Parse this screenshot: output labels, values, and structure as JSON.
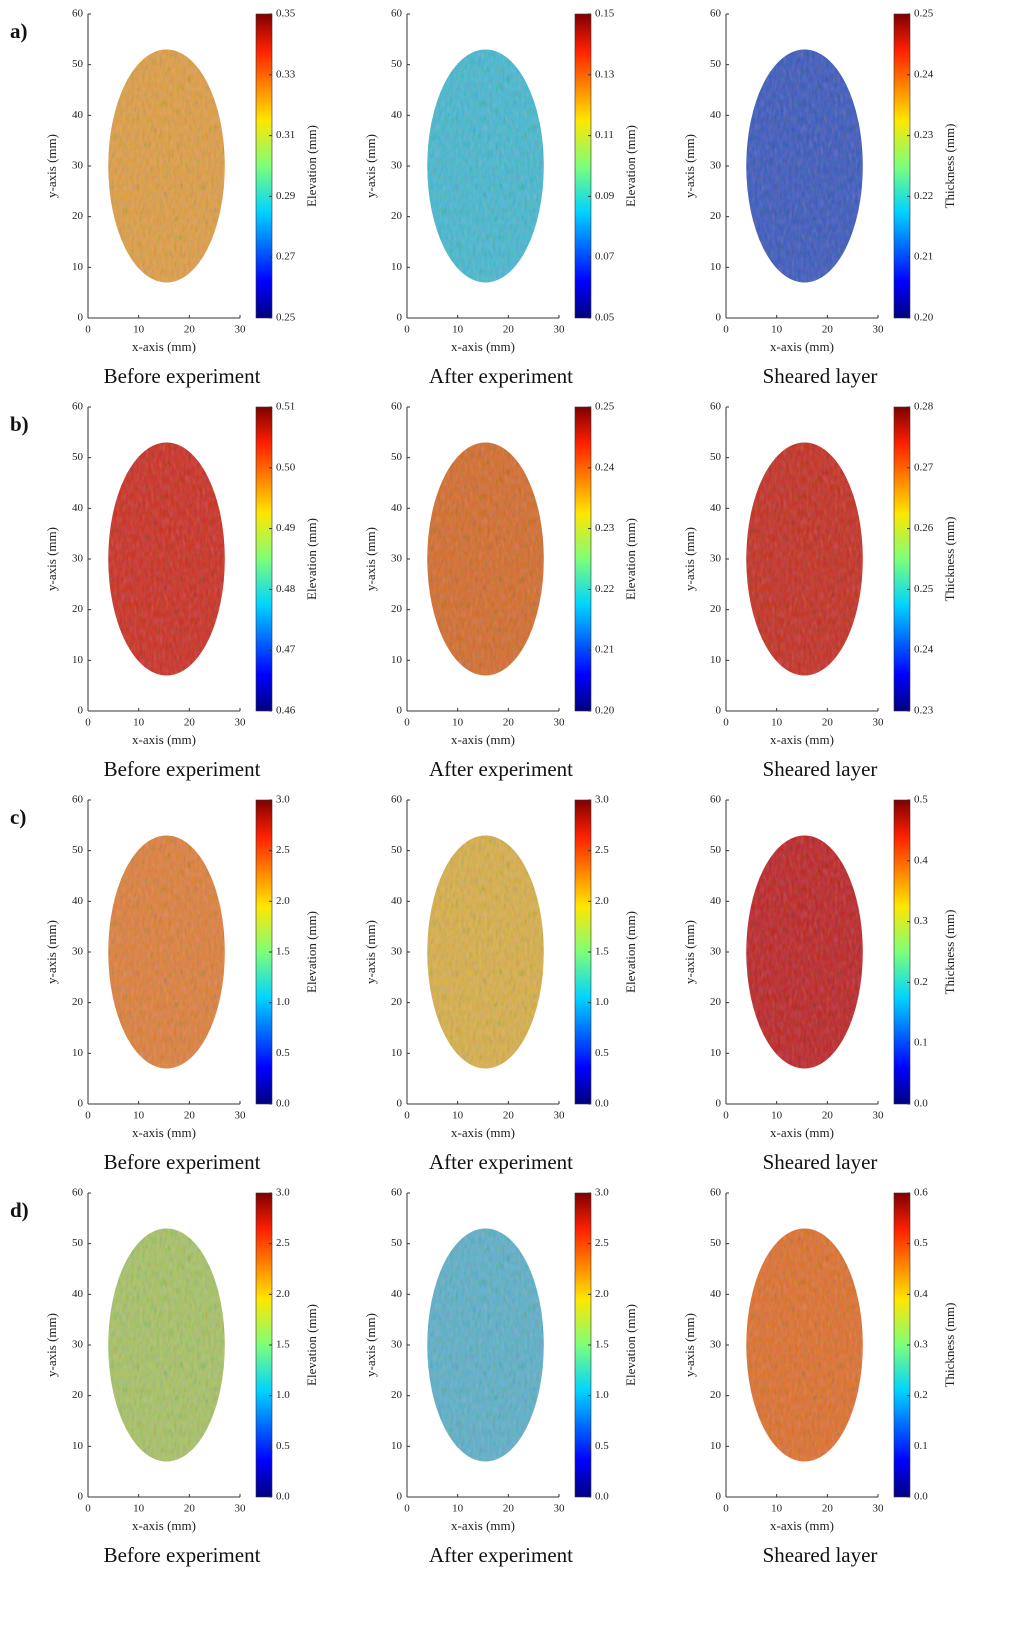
{
  "row_labels": [
    "a)",
    "b)",
    "c)",
    "d)"
  ],
  "chart_data": [
    {
      "type": "heatmap",
      "xlabel": "x-axis (mm)",
      "ylabel": "y-axis (mm)",
      "xlim": [
        0,
        30
      ],
      "ylim": [
        0,
        60
      ],
      "xticks": [
        0,
        10,
        20,
        30
      ],
      "yticks": [
        0,
        10,
        20,
        30,
        40,
        50,
        60
      ],
      "colorbar_label": "Elevation (mm)",
      "clim": [
        0.25,
        0.35
      ],
      "cticks": [
        0.25,
        0.27,
        0.29,
        0.31,
        0.33,
        0.35
      ],
      "caption": "Before experiment"
    },
    {
      "type": "heatmap",
      "xlabel": "x-axis (mm)",
      "ylabel": "y-axis (mm)",
      "xlim": [
        0,
        30
      ],
      "ylim": [
        0,
        60
      ],
      "xticks": [
        0,
        10,
        20,
        30
      ],
      "yticks": [
        0,
        10,
        20,
        30,
        40,
        50,
        60
      ],
      "colorbar_label": "Elevation (mm)",
      "clim": [
        0.05,
        0.15
      ],
      "cticks": [
        0.05,
        0.07,
        0.09,
        0.11,
        0.13,
        0.15
      ],
      "caption": "After experiment"
    },
    {
      "type": "heatmap",
      "xlabel": "x-axis (mm)",
      "ylabel": "y-axis (mm)",
      "xlim": [
        0,
        30
      ],
      "ylim": [
        0,
        60
      ],
      "xticks": [
        0,
        10,
        20,
        30
      ],
      "yticks": [
        0,
        10,
        20,
        30,
        40,
        50,
        60
      ],
      "colorbar_label": "Thickness (mm)",
      "clim": [
        0.2,
        0.25
      ],
      "cticks": [
        {
          "value": 0.2,
          "label": "0.20"
        },
        0.21,
        0.22,
        0.23,
        0.24,
        0.25
      ],
      "caption": "Sheared layer"
    },
    {
      "type": "heatmap",
      "xlabel": "x-axis (mm)",
      "ylabel": "y-axis (mm)",
      "xlim": [
        0,
        30
      ],
      "ylim": [
        0,
        60
      ],
      "xticks": [
        0,
        10,
        20,
        30
      ],
      "yticks": [
        0,
        10,
        20,
        30,
        40,
        50,
        60
      ],
      "colorbar_label": "Elevation (mm)",
      "clim": [
        0.46,
        0.51
      ],
      "cticks": [
        0.46,
        0.47,
        0.48,
        0.49,
        {
          "value": 0.5,
          "label": "0.50"
        },
        0.51
      ],
      "caption": "Before experiment"
    },
    {
      "type": "heatmap",
      "xlabel": "x-axis (mm)",
      "ylabel": "y-axis (mm)",
      "xlim": [
        0,
        30
      ],
      "ylim": [
        0,
        60
      ],
      "xticks": [
        0,
        10,
        20,
        30
      ],
      "yticks": [
        0,
        10,
        20,
        30,
        40,
        50,
        60
      ],
      "colorbar_label": "Elevation (mm)",
      "clim": [
        0.2,
        0.25
      ],
      "cticks": [
        {
          "value": 0.2,
          "label": "0.20"
        },
        0.21,
        0.22,
        0.23,
        0.24,
        0.25
      ],
      "caption": "After experiment"
    },
    {
      "type": "heatmap",
      "xlabel": "x-axis (mm)",
      "ylabel": "y-axis (mm)",
      "xlim": [
        0,
        30
      ],
      "ylim": [
        0,
        60
      ],
      "xticks": [
        0,
        10,
        20,
        30
      ],
      "yticks": [
        0,
        10,
        20,
        30,
        40,
        50,
        60
      ],
      "colorbar_label": "Thickness (mm)",
      "clim": [
        0.23,
        0.28
      ],
      "cticks": [
        0.23,
        0.24,
        0.25,
        0.26,
        0.27,
        0.28
      ],
      "caption": "Sheared layer"
    },
    {
      "type": "heatmap",
      "xlabel": "x-axis (mm)",
      "ylabel": "y-axis (mm)",
      "xlim": [
        0,
        30
      ],
      "ylim": [
        0,
        60
      ],
      "xticks": [
        0,
        10,
        20,
        30
      ],
      "yticks": [
        0,
        10,
        20,
        30,
        40,
        50,
        60
      ],
      "colorbar_label": "Elevation (mm)",
      "clim": [
        0,
        3
      ],
      "cticks": [
        {
          "value": 0,
          "label": "0.0"
        },
        0.5,
        {
          "value": 1,
          "label": "1.0"
        },
        1.5,
        {
          "value": 2,
          "label": "2.0"
        },
        2.5,
        {
          "value": 3,
          "label": "3.0"
        }
      ],
      "caption": "Before experiment"
    },
    {
      "type": "heatmap",
      "xlabel": "x-axis (mm)",
      "ylabel": "y-axis (mm)",
      "xlim": [
        0,
        30
      ],
      "ylim": [
        0,
        60
      ],
      "xticks": [
        0,
        10,
        20,
        30
      ],
      "yticks": [
        0,
        10,
        20,
        30,
        40,
        50,
        60
      ],
      "colorbar_label": "Elevation (mm)",
      "clim": [
        0,
        3
      ],
      "cticks": [
        {
          "value": 0,
          "label": "0.0"
        },
        0.5,
        {
          "value": 1,
          "label": "1.0"
        },
        1.5,
        {
          "value": 2,
          "label": "2.0"
        },
        2.5,
        {
          "value": 3,
          "label": "3.0"
        }
      ],
      "caption": "After experiment"
    },
    {
      "type": "heatmap",
      "xlabel": "x-axis (mm)",
      "ylabel": "y-axis (mm)",
      "xlim": [
        0,
        30
      ],
      "ylim": [
        0,
        60
      ],
      "xticks": [
        0,
        10,
        20,
        30
      ],
      "yticks": [
        0,
        10,
        20,
        30,
        40,
        50,
        60
      ],
      "colorbar_label": "Thickness (mm)",
      "clim": [
        0,
        0.5
      ],
      "cticks": [
        {
          "value": 0,
          "label": "0.0"
        },
        0.1,
        0.2,
        0.3,
        0.4,
        0.5
      ],
      "caption": "Sheared layer"
    },
    {
      "type": "heatmap",
      "xlabel": "x-axis (mm)",
      "ylabel": "y-axis (mm)",
      "xlim": [
        0,
        30
      ],
      "ylim": [
        0,
        60
      ],
      "xticks": [
        0,
        10,
        20,
        30
      ],
      "yticks": [
        0,
        10,
        20,
        30,
        40,
        50,
        60
      ],
      "colorbar_label": "Elevation (mm)",
      "clim": [
        0,
        3
      ],
      "cticks": [
        {
          "value": 0,
          "label": "0.0"
        },
        0.5,
        {
          "value": 1,
          "label": "1.0"
        },
        1.5,
        {
          "value": 2,
          "label": "2.0"
        },
        2.5,
        {
          "value": 3,
          "label": "3.0"
        }
      ],
      "caption": "Before experiment"
    },
    {
      "type": "heatmap",
      "xlabel": "x-axis (mm)",
      "ylabel": "y-axis (mm)",
      "xlim": [
        0,
        30
      ],
      "ylim": [
        0,
        60
      ],
      "xticks": [
        0,
        10,
        20,
        30
      ],
      "yticks": [
        0,
        10,
        20,
        30,
        40,
        50,
        60
      ],
      "colorbar_label": "Elevation (mm)",
      "clim": [
        0,
        3
      ],
      "cticks": [
        {
          "value": 0,
          "label": "0.0"
        },
        0.5,
        {
          "value": 1,
          "label": "1.0"
        },
        1.5,
        {
          "value": 2,
          "label": "2.0"
        },
        2.5,
        {
          "value": 3,
          "label": "3.0"
        }
      ],
      "caption": "After experiment"
    },
    {
      "type": "heatmap",
      "xlabel": "x-axis (mm)",
      "ylabel": "y-axis (mm)",
      "xlim": [
        0,
        30
      ],
      "ylim": [
        0,
        60
      ],
      "xticks": [
        0,
        10,
        20,
        30
      ],
      "yticks": [
        0,
        10,
        20,
        30,
        40,
        50,
        60
      ],
      "colorbar_label": "Thickness (mm)",
      "clim": [
        0,
        0.6
      ],
      "cticks": [
        {
          "value": 0,
          "label": "0.0"
        },
        0.1,
        0.2,
        0.3,
        0.4,
        0.5,
        0.6
      ],
      "caption": "Sheared layer"
    }
  ]
}
